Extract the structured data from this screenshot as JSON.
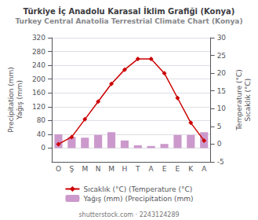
{
  "chart_data": {
    "type": "bar",
    "title": "Türkiye İç Anadolu Karasal İklim Grafiği (Konya)",
    "subtitle": "Turkey Central Anatolia Terrestrial Climate Chart (Konya)",
    "categories": [
      "O",
      "Ş",
      "M",
      "N",
      "M",
      "H",
      "T",
      "A",
      "E",
      "E",
      "K",
      "A"
    ],
    "series": [
      {
        "name": "Yağış (mm) (Precipitation (mm)",
        "type": "bar",
        "color": "#cc99cc",
        "values": [
          40,
          32,
          30,
          38,
          46,
          22,
          8,
          6,
          12,
          38,
          38,
          46
        ]
      },
      {
        "name": "Sıcaklık (°C) (Temperature (°C)",
        "type": "line",
        "color": "#cc0000",
        "marker": "diamond",
        "axis": "y2",
        "values": [
          0,
          2,
          7,
          12,
          17,
          21,
          24,
          24,
          20,
          13,
          6,
          1
        ]
      }
    ],
    "ylabel": "Precipitation (mm)\nYağış (mm)",
    "y2label": "Temperature (°C)\nSıcaklık (°C)",
    "ylim": [
      -40,
      320
    ],
    "yticks": [
      0,
      40,
      80,
      120,
      160,
      200,
      240,
      280,
      320
    ],
    "y2lim": [
      -5,
      30
    ],
    "y2ticks": [
      -5,
      0,
      5,
      10,
      15,
      20,
      25,
      30
    ],
    "grid": true,
    "legend": "bottom",
    "annotations": [
      "shutterstock.com · 2243124289"
    ]
  }
}
